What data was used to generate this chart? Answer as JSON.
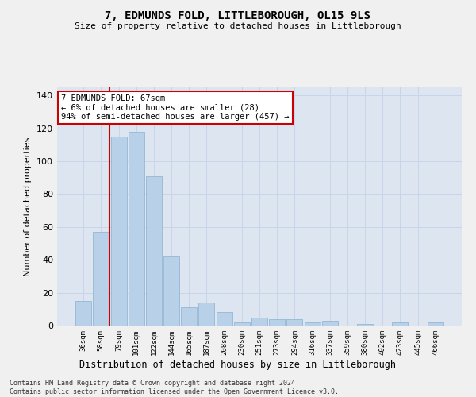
{
  "title": "7, EDMUNDS FOLD, LITTLEBOROUGH, OL15 9LS",
  "subtitle": "Size of property relative to detached houses in Littleborough",
  "xlabel": "Distribution of detached houses by size in Littleborough",
  "ylabel": "Number of detached properties",
  "categories": [
    "36sqm",
    "58sqm",
    "79sqm",
    "101sqm",
    "122sqm",
    "144sqm",
    "165sqm",
    "187sqm",
    "208sqm",
    "230sqm",
    "251sqm",
    "273sqm",
    "294sqm",
    "316sqm",
    "337sqm",
    "359sqm",
    "380sqm",
    "402sqm",
    "423sqm",
    "445sqm",
    "466sqm"
  ],
  "values": [
    15,
    57,
    115,
    118,
    91,
    42,
    11,
    14,
    8,
    2,
    5,
    4,
    4,
    2,
    3,
    0,
    1,
    0,
    2,
    0,
    2
  ],
  "bar_color": "#b8d0e8",
  "bar_edge_color": "#8ab0d0",
  "vline_x_index": 1.5,
  "vline_color": "#cc0000",
  "annotation_text": "7 EDMUNDS FOLD: 67sqm\n← 6% of detached houses are smaller (28)\n94% of semi-detached houses are larger (457) →",
  "annotation_box_color": "#ffffff",
  "annotation_box_edge_color": "#cc0000",
  "ylim": [
    0,
    145
  ],
  "yticks": [
    0,
    20,
    40,
    60,
    80,
    100,
    120,
    140
  ],
  "grid_color": "#c8d4e8",
  "bg_color": "#dde6f0",
  "fig_color": "#f0f0f0",
  "footer_line1": "Contains HM Land Registry data © Crown copyright and database right 2024.",
  "footer_line2": "Contains public sector information licensed under the Open Government Licence v3.0."
}
